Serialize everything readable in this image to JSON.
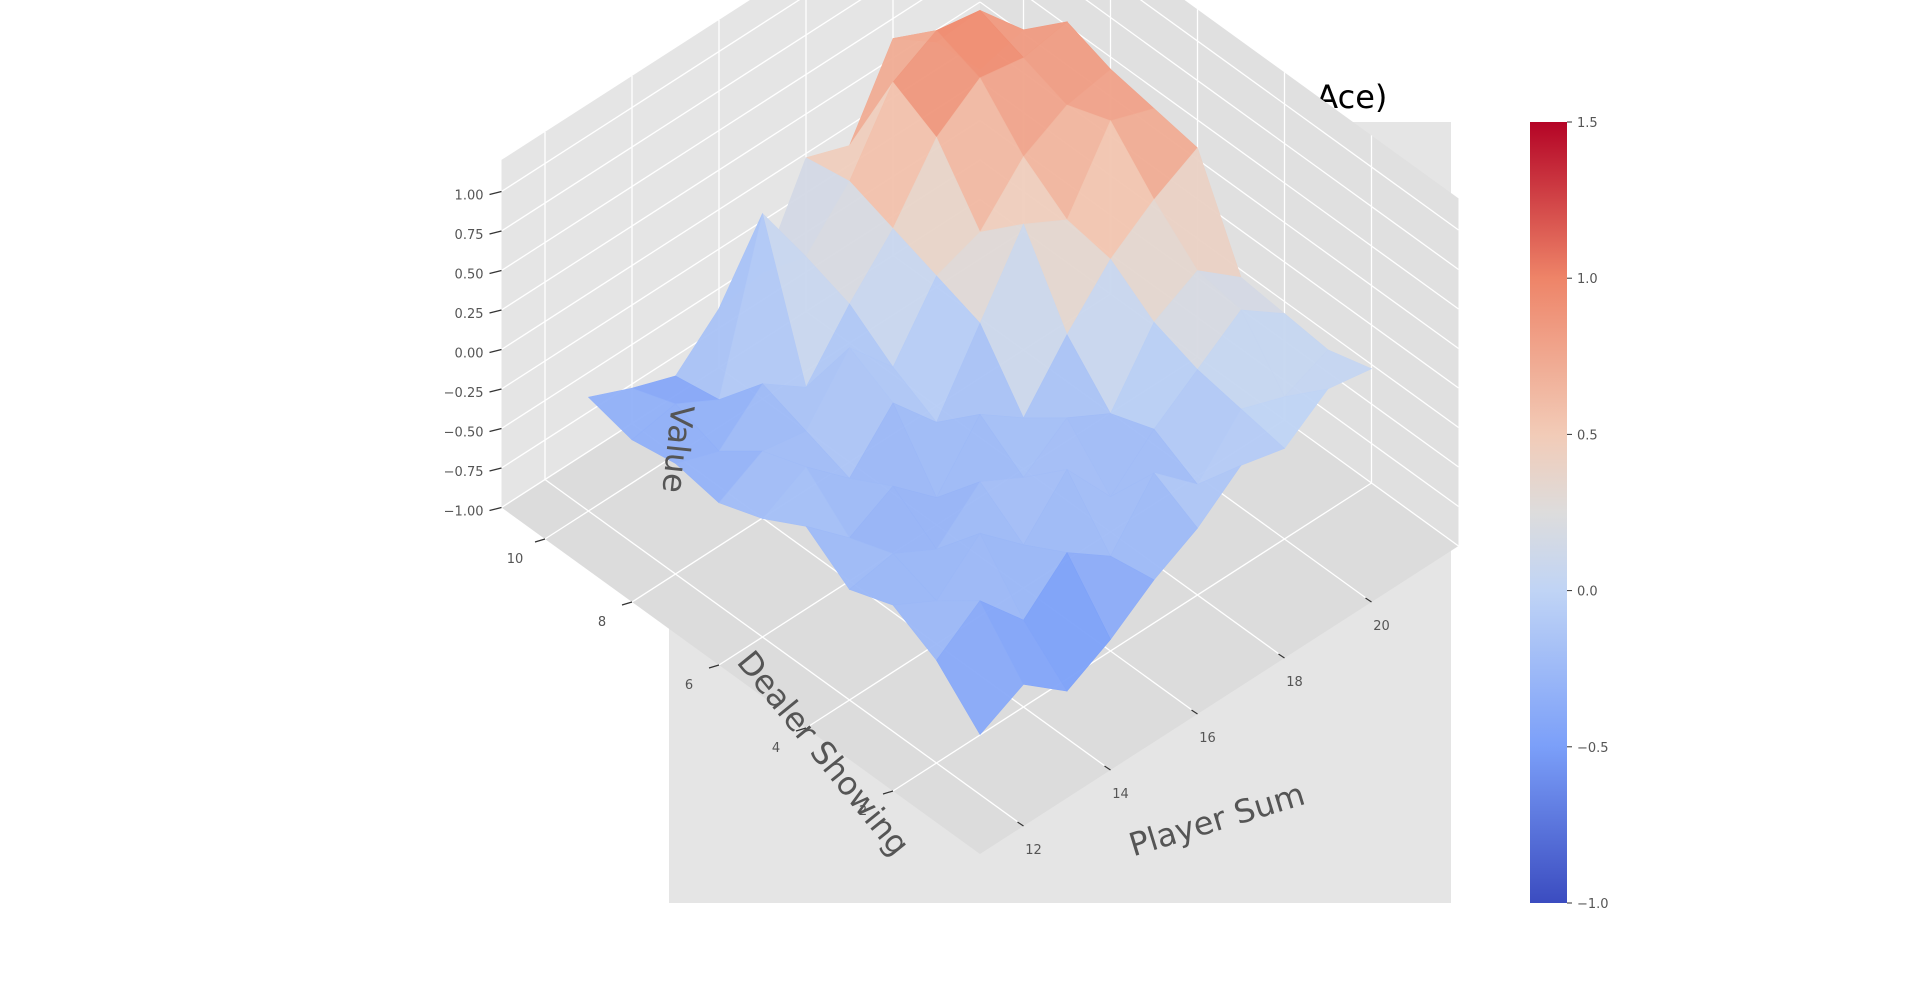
{
  "chart_data": {
    "type": "surface",
    "title": "Expanded state, 6 decks (No Usable Ace)",
    "xlabel": "Player Sum",
    "ylabel": "Dealer Showing",
    "zlabel": "Value",
    "x": [
      12,
      13,
      14,
      15,
      16,
      17,
      18,
      19,
      20,
      21
    ],
    "y": [
      1,
      2,
      3,
      4,
      5,
      6,
      7,
      8,
      9,
      10
    ],
    "xticks": [
      "12",
      "14",
      "16",
      "18",
      "20"
    ],
    "yticks": [
      "2",
      "4",
      "6",
      "8",
      "10"
    ],
    "zticks": [
      "−1.00",
      "−0.75",
      "−0.50",
      "−0.25",
      "0.00",
      "0.25",
      "0.50",
      "0.75",
      "1.00"
    ],
    "zlim": [
      -1.0,
      1.0
    ],
    "z": [
      [
        -0.62,
        -0.48,
        -0.7,
        -0.55,
        -0.35,
        -0.2,
        0.02,
        -0.05,
        0.15,
        0.1
      ],
      [
        -0.35,
        -0.15,
        -0.45,
        -0.2,
        -0.4,
        -0.05,
        -0.3,
        0.0,
        -0.1,
        0.02
      ],
      [
        -0.2,
        -0.35,
        -0.1,
        -0.35,
        -0.05,
        -0.4,
        -0.15,
        0.05,
        0.25,
        0.05
      ],
      [
        -0.3,
        -0.25,
        -0.4,
        -0.15,
        -0.3,
        -0.1,
        -0.25,
        0.15,
        0.3,
        0.08
      ],
      [
        -0.1,
        -0.35,
        -0.2,
        -0.45,
        -0.1,
        -0.3,
        0.05,
        0.35,
        0.55,
        0.7
      ],
      [
        -0.25,
        -0.1,
        -0.35,
        -0.05,
        -0.35,
        0.1,
        0.55,
        0.4,
        0.85,
        0.75
      ],
      [
        -0.35,
        -0.2,
        -0.25,
        0.1,
        -0.2,
        0.2,
        0.3,
        0.6,
        0.75,
        0.8
      ],
      [
        -0.3,
        -0.4,
        -0.15,
        -0.35,
        0.0,
        0.3,
        0.7,
        0.9,
        0.85,
        0.9
      ],
      [
        -0.35,
        -0.3,
        -0.45,
        0.55,
        0.1,
        0.4,
        0.85,
        1.0,
        0.95,
        0.65
      ],
      [
        -0.28,
        -0.4,
        -0.5,
        -0.25,
        -0.2,
        0.35,
        0.25,
        0.75,
        0.55,
        0.2
      ]
    ],
    "colorbar": {
      "colormap": "coolwarm",
      "range": [
        -1.0,
        1.5
      ],
      "ticks": [
        "1.5",
        "1.0",
        "0.5",
        "0.0",
        "−0.5",
        "−1.0"
      ],
      "tick_values": [
        1.5,
        1.0,
        0.5,
        0.0,
        -0.5,
        -1.0
      ],
      "colors": [
        "#3b4cc0",
        "#7b9ff9",
        "#c0d4f5",
        "#dddcdc",
        "#f2cbb7",
        "#ee8468",
        "#b40426"
      ]
    },
    "pane_color": "#e5e5e5",
    "grid": true
  }
}
